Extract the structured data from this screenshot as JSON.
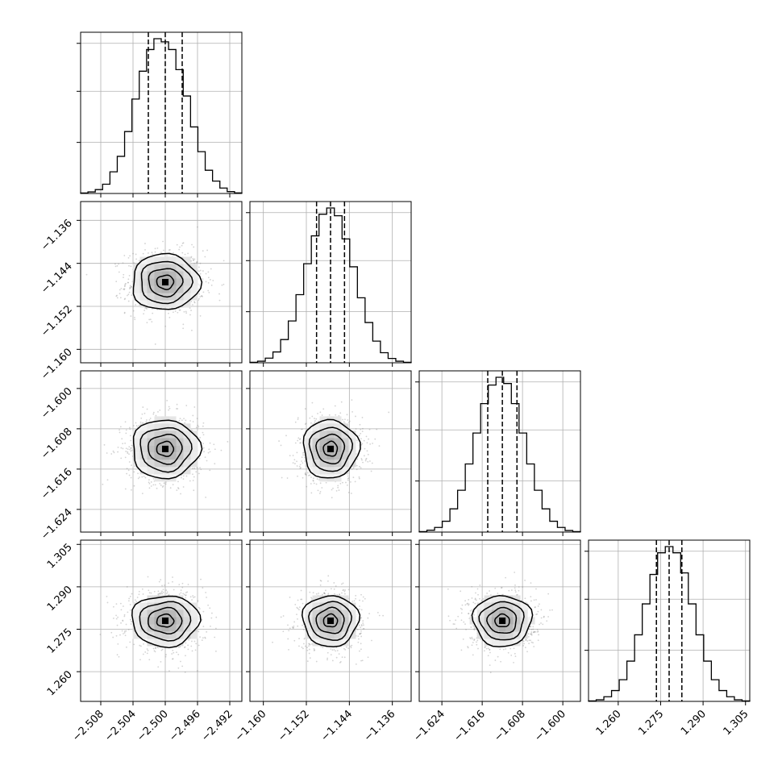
{
  "chart_data": {
    "type": "corner",
    "grid": true,
    "histogram_color": "#000000",
    "scatter_color": "#808080",
    "contour_color": "#000000",
    "quantiles": [
      0.16,
      0.5,
      0.84
    ],
    "parameters": [
      {
        "mean": -2.5,
        "std": 0.0021,
        "range": [
          -2.5105,
          -2.4905
        ],
        "ticks": [
          -2.508,
          -2.504,
          -2.5,
          -2.496,
          -2.492
        ],
        "tick_labels": [
          "−2.508",
          "−2.504",
          "−2.500",
          "−2.496",
          "−2.492"
        ],
        "quantile_values": [
          -2.5021,
          -2.5,
          -2.4979
        ]
      },
      {
        "mean": -1.1475,
        "std": 0.0026,
        "range": [
          -1.1625,
          -1.1325
        ],
        "ticks": [
          -1.16,
          -1.152,
          -1.144,
          -1.136
        ],
        "tick_labels": [
          "−1.160",
          "−1.152",
          "−1.144",
          "−1.136"
        ],
        "quantile_values": [
          -1.1501,
          -1.1475,
          -1.1449
        ]
      },
      {
        "mean": -1.612,
        "std": 0.0029,
        "range": [
          -1.6285,
          -1.5965
        ],
        "ticks": [
          -1.624,
          -1.616,
          -1.608,
          -1.6
        ],
        "tick_labels": [
          "−1.624",
          "−1.616",
          "−1.608",
          "−1.600"
        ],
        "quantile_values": [
          -1.6149,
          -1.612,
          -1.6091
        ]
      },
      {
        "mean": 1.278,
        "std": 0.0045,
        "range": [
          1.2495,
          1.3065
        ],
        "ticks": [
          1.26,
          1.275,
          1.29,
          1.305
        ],
        "tick_labels": [
          "1.260",
          "1.275",
          "1.290",
          "1.305"
        ],
        "quantile_values": [
          1.2735,
          1.278,
          1.2825
        ]
      }
    ],
    "histogram_counts": [
      [
        0.003,
        0.01,
        0.025,
        0.06,
        0.14,
        0.24,
        0.4,
        0.61,
        0.79,
        0.93,
        1.0,
        0.98,
        0.93,
        0.8,
        0.63,
        0.43,
        0.27,
        0.15,
        0.08,
        0.035,
        0.012,
        0.004
      ],
      [
        0.003,
        0.01,
        0.03,
        0.07,
        0.15,
        0.27,
        0.44,
        0.64,
        0.82,
        0.96,
        1.0,
        0.95,
        0.8,
        0.62,
        0.42,
        0.26,
        0.14,
        0.065,
        0.028,
        0.01,
        0.003
      ],
      [
        0.003,
        0.012,
        0.03,
        0.07,
        0.15,
        0.27,
        0.44,
        0.64,
        0.83,
        0.95,
        1.0,
        0.96,
        0.83,
        0.64,
        0.44,
        0.27,
        0.15,
        0.07,
        0.03,
        0.01,
        0.003
      ],
      [
        0.003,
        0.01,
        0.03,
        0.07,
        0.14,
        0.26,
        0.43,
        0.63,
        0.82,
        0.96,
        1.0,
        0.96,
        0.83,
        0.63,
        0.43,
        0.26,
        0.14,
        0.07,
        0.03,
        0.01,
        0.003
      ]
    ]
  }
}
